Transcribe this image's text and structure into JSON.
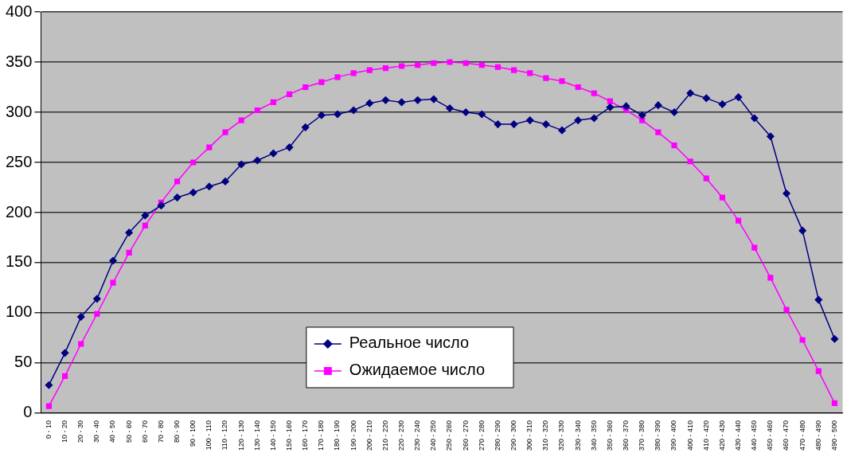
{
  "chart_data": {
    "type": "line",
    "categories": [
      "0 - 10",
      "10 - 20",
      "20 - 30",
      "30 - 40",
      "40 - 50",
      "50 - 60",
      "60 - 70",
      "70 - 80",
      "80 - 90",
      "90 - 100",
      "100 - 110",
      "110 - 120",
      "120 - 130",
      "130 - 140",
      "140 - 150",
      "150 - 160",
      "160 - 170",
      "170 - 180",
      "180 - 190",
      "190 - 200",
      "200 - 210",
      "210 - 220",
      "220 - 230",
      "230 - 240",
      "240 - 250",
      "250 - 260",
      "260 - 270",
      "270 - 280",
      "280 - 290",
      "290 - 300",
      "300 - 310",
      "310 - 320",
      "320 - 330",
      "330 - 340",
      "340 - 350",
      "350 - 360",
      "360 - 370",
      "370 - 380",
      "380 - 390",
      "390 - 400",
      "400 - 410",
      "410 - 420",
      "420 - 430",
      "430 - 440",
      "440 - 450",
      "450 - 460",
      "460 - 470",
      "470 - 480",
      "480 - 490",
      "490 - 500"
    ],
    "series": [
      {
        "name": "Реальное число",
        "color": "#000080",
        "marker": "diamond",
        "values": [
          28,
          60,
          96,
          114,
          152,
          180,
          197,
          207,
          215,
          220,
          226,
          231,
          248,
          252,
          259,
          265,
          285,
          297,
          298,
          302,
          309,
          312,
          310,
          312,
          313,
          304,
          300,
          298,
          288,
          288,
          292,
          288,
          282,
          292,
          294,
          305,
          306,
          297,
          307,
          300,
          319,
          314,
          308,
          315,
          294,
          276,
          219,
          182,
          113,
          74
        ]
      },
      {
        "name": "Ожидаемое число",
        "color": "#ff00ff",
        "marker": "square",
        "values": [
          7,
          37,
          69,
          99,
          130,
          160,
          187,
          210,
          231,
          250,
          265,
          280,
          292,
          302,
          310,
          318,
          325,
          330,
          335,
          339,
          342,
          344,
          346,
          347,
          349,
          350,
          349,
          347,
          345,
          342,
          339,
          334,
          331,
          325,
          319,
          311,
          302,
          292,
          280,
          267,
          251,
          234,
          215,
          192,
          165,
          135,
          103,
          73,
          42,
          10
        ]
      }
    ],
    "ylim": [
      0,
      400
    ],
    "yticks": [
      0,
      50,
      100,
      150,
      200,
      250,
      300,
      350,
      400
    ],
    "grid": "y",
    "legend": "bottom",
    "line_style": "solid"
  }
}
